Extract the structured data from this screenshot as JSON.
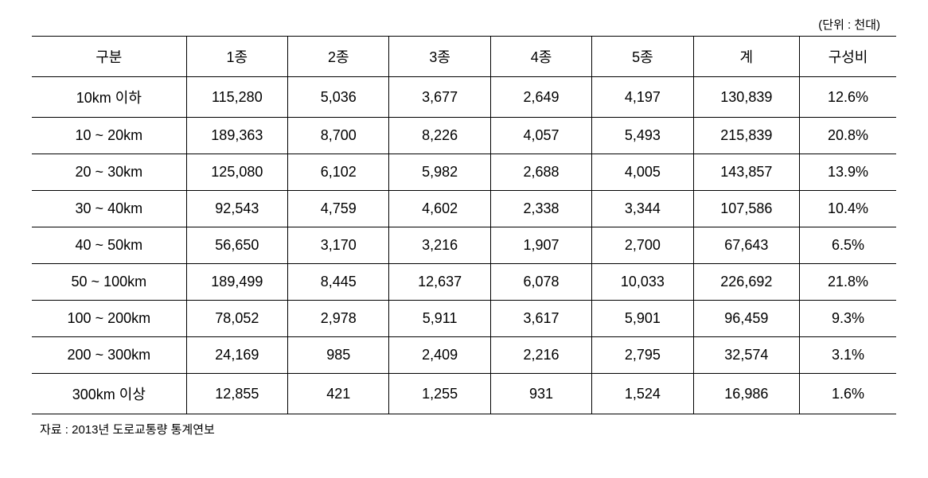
{
  "unit_label": "(단위 : 천대)",
  "table": {
    "columns": [
      "구분",
      "1종",
      "2종",
      "3종",
      "4종",
      "5종",
      "계",
      "구성비"
    ],
    "column_widths": [
      "16%",
      "10.5%",
      "10.5%",
      "10.5%",
      "10.5%",
      "10.5%",
      "11%",
      "10%"
    ],
    "rows": [
      {
        "category": "10km 이하",
        "c1": "115,280",
        "c2": "5,036",
        "c3": "3,677",
        "c4": "2,649",
        "c5": "4,197",
        "total": "130,839",
        "ratio": "12.6%"
      },
      {
        "category": "10 ~ 20km",
        "c1": "189,363",
        "c2": "8,700",
        "c3": "8,226",
        "c4": "4,057",
        "c5": "5,493",
        "total": "215,839",
        "ratio": "20.8%"
      },
      {
        "category": "20 ~ 30km",
        "c1": "125,080",
        "c2": "6,102",
        "c3": "5,982",
        "c4": "2,688",
        "c5": "4,005",
        "total": "143,857",
        "ratio": "13.9%"
      },
      {
        "category": "30 ~ 40km",
        "c1": "92,543",
        "c2": "4,759",
        "c3": "4,602",
        "c4": "2,338",
        "c5": "3,344",
        "total": "107,586",
        "ratio": "10.4%"
      },
      {
        "category": "40 ~ 50km",
        "c1": "56,650",
        "c2": "3,170",
        "c3": "3,216",
        "c4": "1,907",
        "c5": "2,700",
        "total": "67,643",
        "ratio": "6.5%"
      },
      {
        "category": "50 ~ 100km",
        "c1": "189,499",
        "c2": "8,445",
        "c3": "12,637",
        "c4": "6,078",
        "c5": "10,033",
        "total": "226,692",
        "ratio": "21.8%"
      },
      {
        "category": "100 ~ 200km",
        "c1": "78,052",
        "c2": "2,978",
        "c3": "5,911",
        "c4": "3,617",
        "c5": "5,901",
        "total": "96,459",
        "ratio": "9.3%"
      },
      {
        "category": "200 ~ 300km",
        "c1": "24,169",
        "c2": "985",
        "c3": "2,409",
        "c4": "2,216",
        "c5": "2,795",
        "total": "32,574",
        "ratio": "3.1%"
      },
      {
        "category": "300km 이상",
        "c1": "12,855",
        "c2": "421",
        "c3": "1,255",
        "c4": "931",
        "c5": "1,524",
        "total": "16,986",
        "ratio": "1.6%"
      }
    ]
  },
  "source": "자료 : 2013년 도로교통량 통계연보",
  "styling": {
    "background_color": "#ffffff",
    "text_color": "#000000",
    "border_color": "#000000",
    "header_fontsize": 18,
    "cell_fontsize": 18,
    "label_fontsize": 15,
    "source_fontsize": 15,
    "header_border_top_width": 1.5,
    "row_border_width": 1,
    "last_row_border_width": 1.5
  }
}
